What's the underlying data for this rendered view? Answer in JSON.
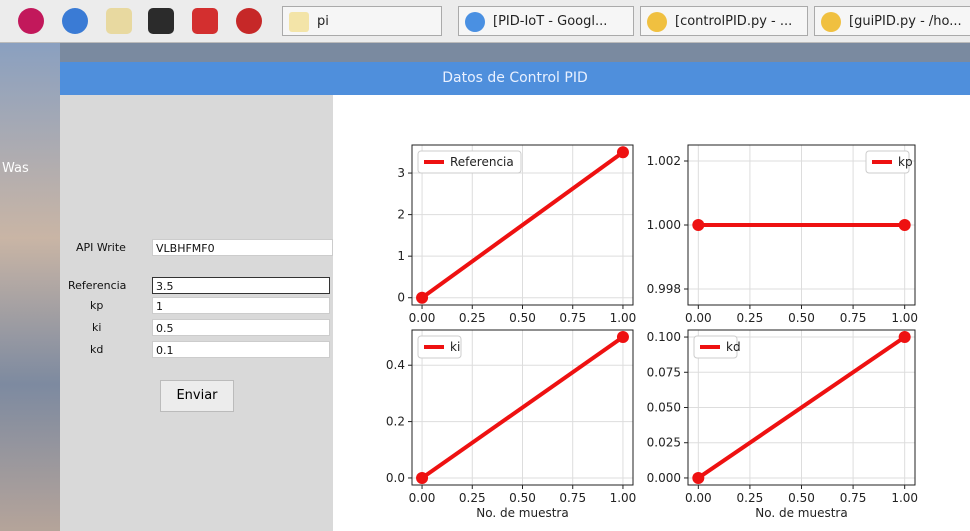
{
  "taskbar": {
    "folder": "pi",
    "tasks": [
      "[PID-IoT - Googl...",
      "[controlPID.py - ...",
      "[guiPID.py - /ho..."
    ]
  },
  "desktop": {
    "label": "Was"
  },
  "window": {
    "title": "Datos de Control PID"
  },
  "form": {
    "api_label": "API Write",
    "api_value": "VLBHFMF0",
    "fields": [
      {
        "label": "Referencia",
        "value": "3.5"
      },
      {
        "label": "kp",
        "value": "1"
      },
      {
        "label": "ki",
        "value": "0.5"
      },
      {
        "label": "kd",
        "value": "0.1"
      }
    ],
    "button": "Enviar"
  },
  "chart_data": [
    {
      "type": "line",
      "x": [
        0,
        1
      ],
      "series": [
        {
          "name": "Referencia",
          "color": "#ee1111",
          "values": [
            0,
            3.5
          ]
        }
      ],
      "xlim": [
        -0.05,
        1.05
      ],
      "ylim": [
        -0.175,
        3.675
      ],
      "xticks": [
        {
          "value": 0,
          "label": "0.00"
        },
        0.25,
        {
          "value": 0.5,
          "label": "0.50"
        },
        0.75,
        {
          "value": 1,
          "label": "1.00"
        }
      ],
      "yticks": [
        0,
        1,
        2,
        3
      ],
      "grid": true,
      "legend": "upper left"
    },
    {
      "type": "line",
      "x": [
        0,
        1
      ],
      "series": [
        {
          "name": "kp",
          "color": "#ee1111",
          "values": [
            1,
            1
          ]
        }
      ],
      "xlim": [
        -0.05,
        1.05
      ],
      "ylim": [
        0.9975,
        1.0025
      ],
      "xticks": [
        {
          "value": 0,
          "label": "0.00"
        },
        0.25,
        {
          "value": 0.5,
          "label": "0.50"
        },
        0.75,
        {
          "value": 1,
          "label": "1.00"
        }
      ],
      "yticks": [
        0.998,
        {
          "value": 1,
          "label": "1.000"
        },
        1.002
      ],
      "grid": true,
      "legend": "upper right"
    },
    {
      "type": "line",
      "x": [
        0,
        1
      ],
      "series": [
        {
          "name": "ki",
          "color": "#ee1111",
          "values": [
            0,
            0.5
          ]
        }
      ],
      "xlim": [
        -0.05,
        1.05
      ],
      "ylim": [
        -0.025,
        0.525
      ],
      "xticks": [
        {
          "value": 0,
          "label": "0.00"
        },
        0.25,
        {
          "value": 0.5,
          "label": "0.50"
        },
        0.75,
        {
          "value": 1,
          "label": "1.00"
        }
      ],
      "yticks": [
        {
          "value": 0,
          "label": "0.0"
        },
        0.2,
        0.4
      ],
      "grid": true,
      "legend": "upper left",
      "xlabel": "No. de muestra"
    },
    {
      "type": "line",
      "x": [
        0,
        1
      ],
      "series": [
        {
          "name": "kd",
          "color": "#ee1111",
          "values": [
            0,
            0.1
          ]
        }
      ],
      "xlim": [
        -0.05,
        1.05
      ],
      "ylim": [
        -0.005,
        0.105
      ],
      "xticks": [
        {
          "value": 0,
          "label": "0.00"
        },
        0.25,
        {
          "value": 0.5,
          "label": "0.50"
        },
        0.75,
        {
          "value": 1,
          "label": "1.00"
        }
      ],
      "yticks": [
        {
          "value": 0,
          "label": "0.000"
        },
        0.025,
        {
          "value": 0.05,
          "label": "0.050"
        },
        0.075,
        {
          "value": 0.1,
          "label": "0.100"
        }
      ],
      "grid": true,
      "legend": "upper left",
      "xlabel": "No. de muestra"
    }
  ]
}
